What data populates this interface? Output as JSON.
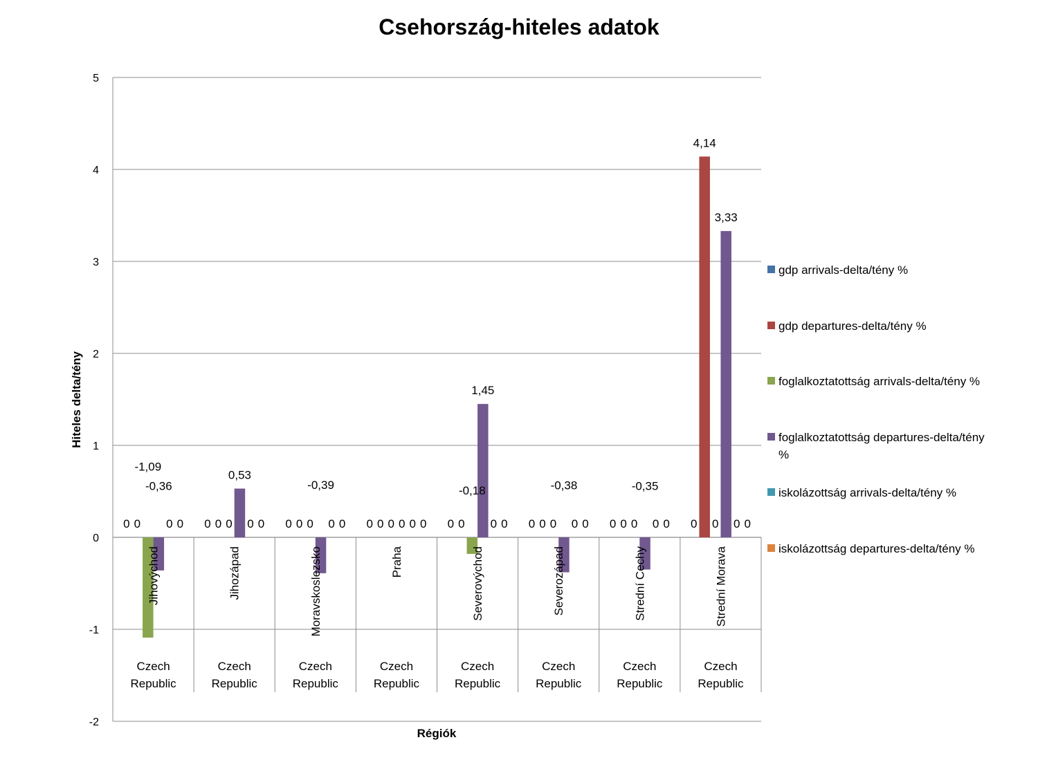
{
  "chart_data": {
    "type": "bar",
    "title": "Csehország-hiteles adatok",
    "xlabel": "Régiók",
    "ylabel": "Hiteles delta/tény",
    "ylim": [
      -2,
      5
    ],
    "yticks": [
      -2,
      -1,
      0,
      1,
      2,
      3,
      4,
      5
    ],
    "grid": true,
    "legend_position": "right",
    "categories": [
      "Jihovýchod",
      "Jihozápad",
      "Moravskoslezsko",
      "Praha",
      "Severovýchod",
      "Severozápad",
      "Strední Cechy",
      "Strední Morava"
    ],
    "group_label": "Czech Republic",
    "series": [
      {
        "name": "gdp arrivals-delta/tény %",
        "color": "#4572A7",
        "values": [
          0,
          0,
          0,
          0,
          0,
          0,
          0,
          0
        ]
      },
      {
        "name": "gdp departures-delta/tény %",
        "color": "#AA4643",
        "values": [
          0,
          0,
          0,
          0,
          0,
          0,
          0,
          4.14
        ]
      },
      {
        "name": "foglalkoztatottság arrivals-delta/tény %",
        "color": "#89A54E",
        "values": [
          -1.09,
          0,
          0,
          0,
          -0.18,
          0,
          0,
          0
        ]
      },
      {
        "name": "foglalkoztatottság departures-delta/tény %",
        "color": "#71588F",
        "values": [
          -0.36,
          0.53,
          -0.39,
          0,
          1.45,
          -0.38,
          -0.35,
          3.33
        ]
      },
      {
        "name": "iskolázottság arrivals-delta/tény %",
        "color": "#4198AF",
        "values": [
          0,
          0,
          0,
          0,
          0,
          0,
          0,
          0
        ]
      },
      {
        "name": "iskolázottság departures-delta/tény %",
        "color": "#DB843D",
        "values": [
          0,
          0,
          0,
          0,
          0,
          0,
          0,
          0
        ]
      }
    ],
    "data_labels": [
      [
        "0",
        "0",
        "-1,09",
        "-0,36",
        "0",
        "0"
      ],
      [
        "0",
        "0",
        "0",
        "0,53",
        "0",
        "0"
      ],
      [
        "0",
        "0",
        "0",
        "-0,39",
        "0",
        "0"
      ],
      [
        "0",
        "0",
        "0",
        "0",
        "0",
        "0"
      ],
      [
        "0",
        "0",
        "-0,18",
        "1,45",
        "0",
        "0"
      ],
      [
        "0",
        "0",
        "0",
        "-0,38",
        "0",
        "0"
      ],
      [
        "0",
        "0",
        "0",
        "-0,35",
        "0",
        "0"
      ],
      [
        "0",
        "4,14",
        "0",
        "3,33",
        "0",
        "0"
      ]
    ]
  }
}
